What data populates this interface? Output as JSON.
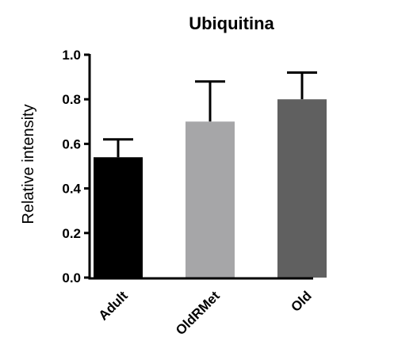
{
  "chart_data": {
    "type": "bar",
    "title": "Ubiquitina",
    "xlabel": "",
    "ylabel": "Relative intensity",
    "ylim": [
      0,
      1.0
    ],
    "yticks": [
      "0.0",
      "0.2",
      "0.4",
      "0.6",
      "0.8",
      "1.0"
    ],
    "grid": false,
    "categories": [
      "Adult",
      "OldRMet",
      "Old"
    ],
    "values": [
      0.54,
      0.7,
      0.8
    ],
    "errors": [
      0.08,
      0.18,
      0.12
    ],
    "colors": [
      "#000000",
      "#a6a6a8",
      "#606060"
    ]
  }
}
